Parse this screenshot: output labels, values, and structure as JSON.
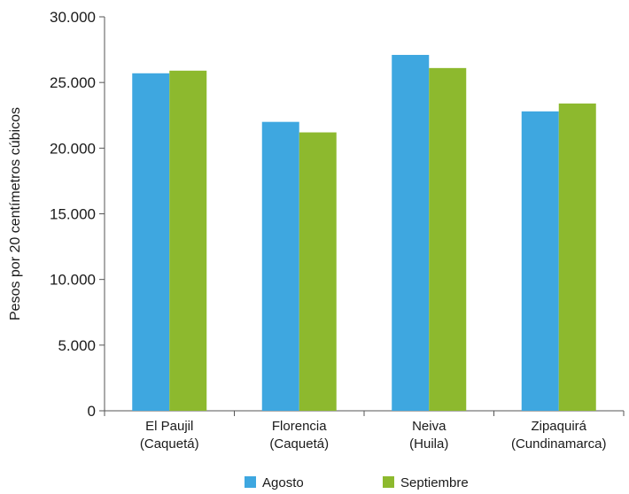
{
  "chart_data": {
    "type": "bar",
    "title": "",
    "xlabel": "",
    "ylabel": "Pesos por 20 centímetros cúbicos",
    "ylim": [
      0,
      30000
    ],
    "yticks": [
      0,
      5000,
      10000,
      15000,
      20000,
      25000,
      30000
    ],
    "ytick_labels": [
      "0",
      "5.000",
      "10.000",
      "15.000",
      "20.000",
      "25.000",
      "30.000"
    ],
    "categories": [
      [
        "El Paujil",
        "(Caquetá)"
      ],
      [
        "Florencia",
        "(Caquetá)"
      ],
      [
        "Neiva",
        "(Huila)"
      ],
      [
        "Zipaquirá",
        "(Cundinamarca)"
      ]
    ],
    "series": [
      {
        "name": "Agosto",
        "color": "#3ea7e0",
        "values": [
          25700,
          22000,
          27100,
          22800
        ]
      },
      {
        "name": "Septiembre",
        "color": "#8db92e",
        "values": [
          25900,
          21200,
          26100,
          23400
        ]
      }
    ],
    "grid": false,
    "legend": "bottom"
  }
}
